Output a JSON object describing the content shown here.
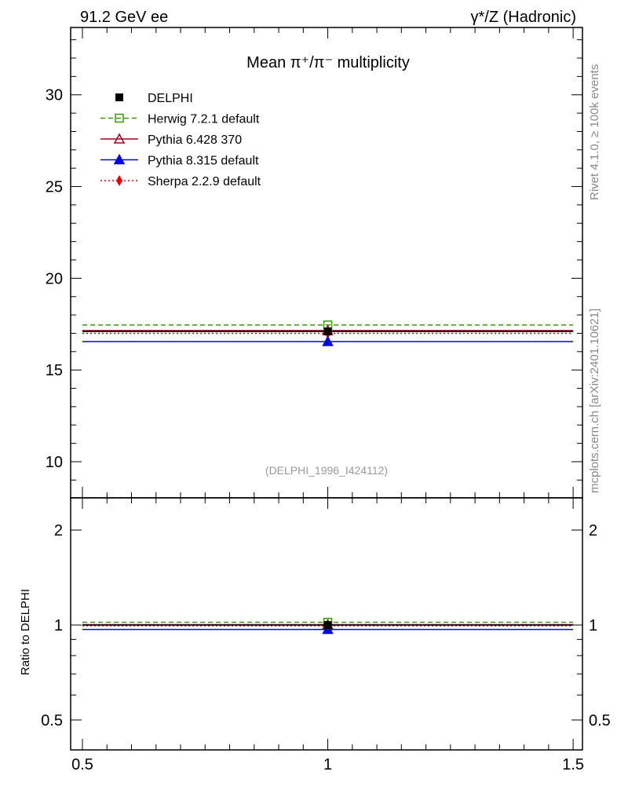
{
  "chart_data": {
    "type": "scatter",
    "header_left": "91.2 GeV ee",
    "header_right": "γ*/Z (Hadronic)",
    "title": "Mean π⁺/π⁻ multiplicity",
    "analysis_id": "(DELPHI_1996_I424112)",
    "side_label_top": "Rivet 4.1.0, ≥ 100k events",
    "side_label_bottom": "mcplots.cern.ch [arXiv:2401.10621]",
    "ratio_ylabel": "Ratio to DELPHI",
    "xlim": [
      0.476,
      1.519
    ],
    "ylim": [
      8.03,
      33.67
    ],
    "ratio_ylim": [
      0.402,
      2.53
    ],
    "x_ticks": [
      "0.5",
      "1",
      "1.5"
    ],
    "y_ticks": [
      "10",
      "15",
      "20",
      "25",
      "30"
    ],
    "ratio_ticks": [
      "0.5",
      "1",
      "2"
    ],
    "bin": [
      0.5,
      1.5
    ],
    "x_center": 1,
    "series": [
      {
        "name": "DELPHI",
        "value": 17.1,
        "ratio": 1.0,
        "color": "#000000",
        "marker": "square-filled",
        "dash": ""
      },
      {
        "name": "Herwig 7.2.1 default",
        "value": 17.45,
        "ratio": 1.02,
        "color": "#3a9a00",
        "marker": "square-open",
        "dash": "6,4"
      },
      {
        "name": "Pythia 6.428 370",
        "value": 17.15,
        "ratio": 1.003,
        "color": "#a00020",
        "marker": "triangle-open",
        "dash": ""
      },
      {
        "name": "Pythia 8.315 default",
        "value": 16.55,
        "ratio": 0.968,
        "color": "#0000ee",
        "marker": "triangle-filled",
        "dash": ""
      },
      {
        "name": "Sherpa 2.2.9 default",
        "value": 17.0,
        "ratio": 0.994,
        "color": "#ee0000",
        "marker": "diamond-filled",
        "dash": "2,3"
      }
    ]
  }
}
